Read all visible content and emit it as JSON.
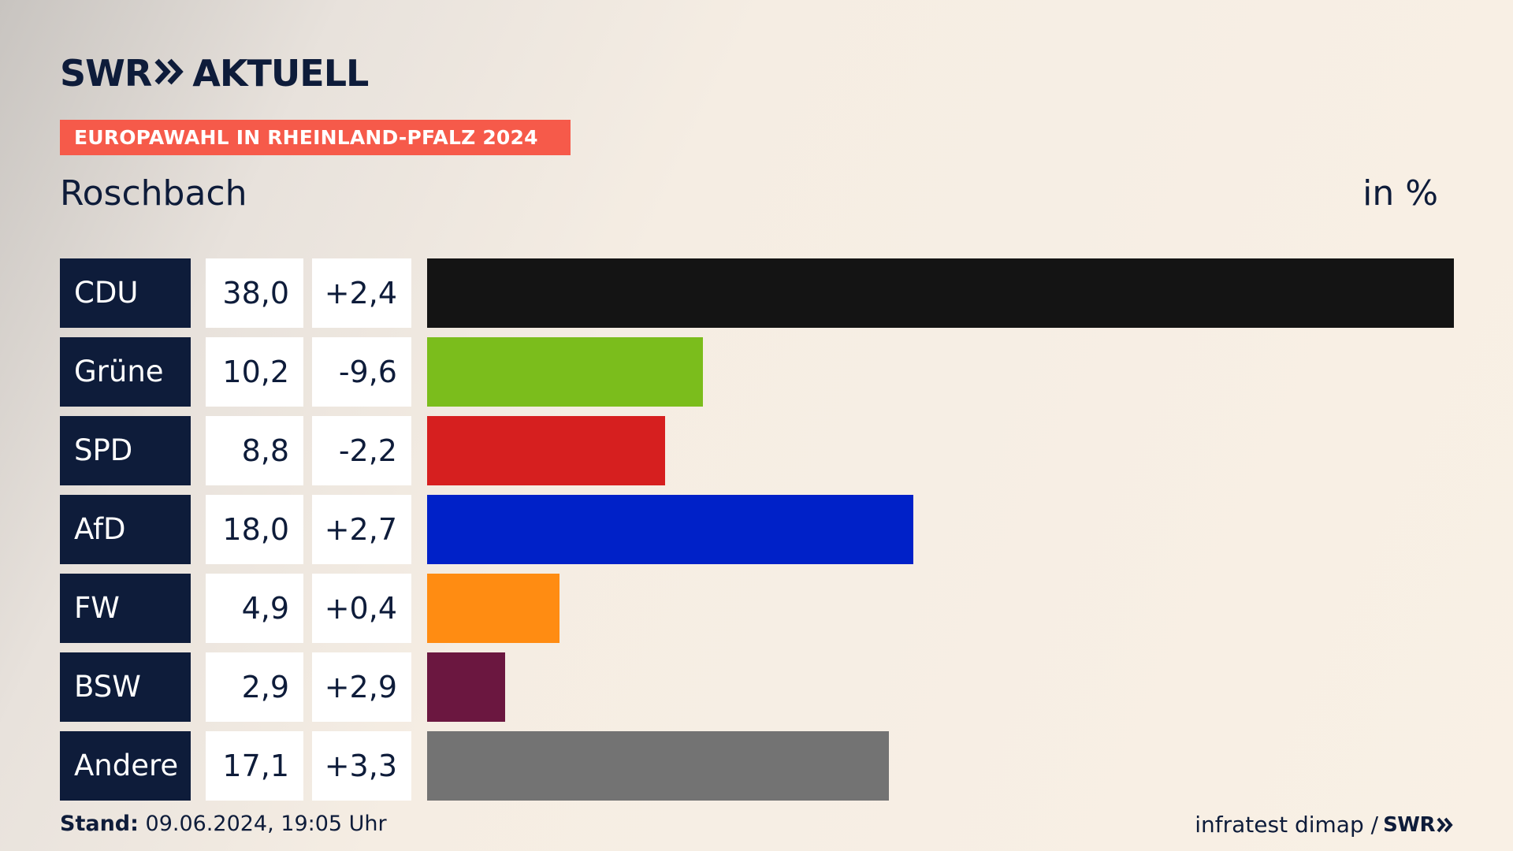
{
  "header": {
    "brand": "SWR",
    "brand_suffix": "AKTUELL",
    "banner": "EUROPAWAHL IN RHEINLAND-PFALZ 2024",
    "subtitle": "Roschbach",
    "unit": "in %"
  },
  "footer": {
    "stand_label": "Stand:",
    "stand_value": "09.06.2024, 19:05 Uhr",
    "source": "infratest dimap /",
    "source_brand": "SWR"
  },
  "chart_data": {
    "type": "bar",
    "orientation": "horizontal",
    "title": "Roschbach",
    "unit": "in %",
    "xlim": [
      0,
      38.0
    ],
    "categories": [
      "CDU",
      "Grüne",
      "SPD",
      "AfD",
      "FW",
      "BSW",
      "Andere"
    ],
    "values": [
      38.0,
      10.2,
      8.8,
      18.0,
      4.9,
      2.9,
      17.1
    ],
    "value_labels": [
      "38,0",
      "10,2",
      "8,8",
      "18,0",
      "4,9",
      "2,9",
      "17,1"
    ],
    "diff_labels": [
      "+2,4",
      "-9,6",
      "-2,2",
      "+2,7",
      "+0,4",
      "+2,9",
      "+3,3"
    ],
    "colors": [
      "#141414",
      "#7bbd1c",
      "#d61f1f",
      "#0021c8",
      "#ff8c12",
      "#6b1740",
      "#737373"
    ],
    "grid": false
  }
}
